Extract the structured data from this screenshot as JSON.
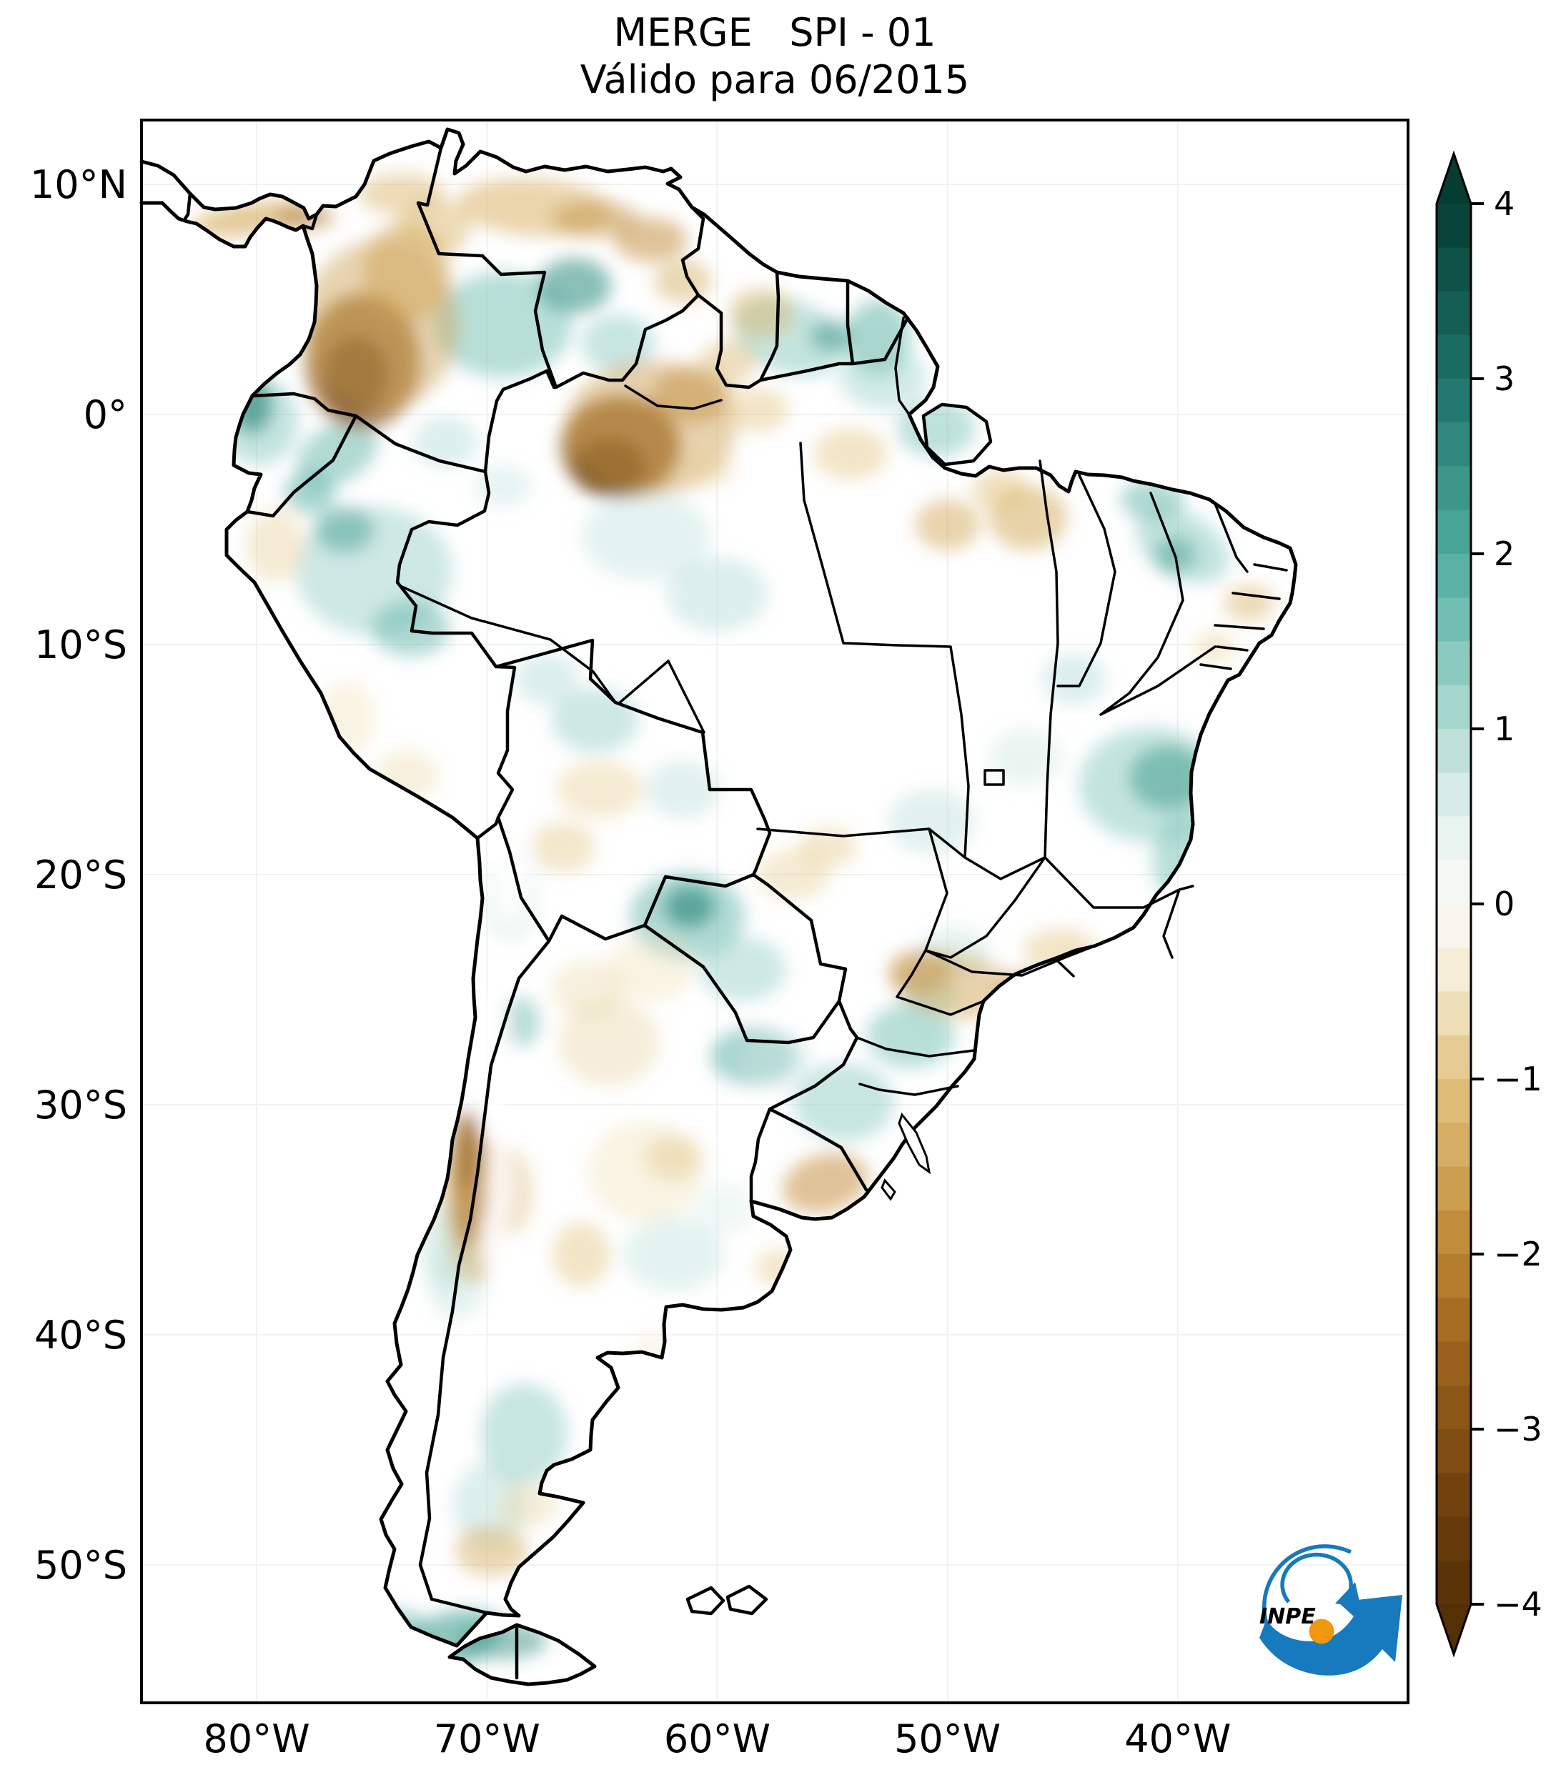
{
  "title": {
    "line1": "MERGE   SPI - 01",
    "line2": "Válido para 06/2015"
  },
  "axes": {
    "lat_ticks": [
      {
        "label": "10°N",
        "deg": 10
      },
      {
        "label": "0°",
        "deg": 0
      },
      {
        "label": "10°S",
        "deg": -10
      },
      {
        "label": "20°S",
        "deg": -20
      },
      {
        "label": "30°S",
        "deg": -30
      },
      {
        "label": "40°S",
        "deg": -40
      },
      {
        "label": "50°S",
        "deg": -50
      }
    ],
    "lon_ticks": [
      {
        "label": "80°W",
        "deg": -80
      },
      {
        "label": "70°W",
        "deg": -70
      },
      {
        "label": "60°W",
        "deg": -60
      },
      {
        "label": "50°W",
        "deg": -50
      },
      {
        "label": "40°W",
        "deg": -40
      }
    ]
  },
  "colorbar": {
    "tick_labels": [
      "4",
      "3",
      "2",
      "1",
      "0",
      "−1",
      "−2",
      "−3",
      "−4"
    ],
    "tick_values": [
      4,
      3,
      2,
      1,
      0,
      -1,
      -2,
      -3,
      -4
    ],
    "value_range": [
      -4,
      4
    ],
    "colormap_stops": [
      {
        "v": 4,
        "c": "#053d33"
      },
      {
        "v": 3,
        "c": "#1d7268"
      },
      {
        "v": 2,
        "c": "#4fab9f"
      },
      {
        "v": 1.5,
        "c": "#7cc4b8"
      },
      {
        "v": 1,
        "c": "#b3dcd4"
      },
      {
        "v": 0.5,
        "c": "#e3f1ed"
      },
      {
        "v": 0,
        "c": "#fafaf8"
      },
      {
        "v": -0.5,
        "c": "#f3e8c9"
      },
      {
        "v": -1,
        "c": "#e2c380"
      },
      {
        "v": -1.5,
        "c": "#d2a759"
      },
      {
        "v": -2,
        "c": "#bb8434"
      },
      {
        "v": -2.5,
        "c": "#a0661d"
      },
      {
        "v": -3,
        "c": "#855113"
      },
      {
        "v": -3.5,
        "c": "#6b3d0c"
      },
      {
        "v": -4,
        "c": "#543005"
      }
    ]
  },
  "logo": {
    "text": "INPE",
    "blue": "#1779be",
    "orange": "#f0960f",
    "black": "#111111"
  },
  "chart_data": {
    "type": "heatmap",
    "variable": "SPI (Standardized Precipitation Index), 1-month",
    "source": "MERGE",
    "valid_for": "06/2015",
    "region": "South America",
    "lon_range": [
      -85,
      -30
    ],
    "lat_range": [
      12.8,
      -56
    ],
    "value_range": [
      -4,
      4
    ],
    "colormap": "BrBG (brown = dry, teal = wet)",
    "grid": "faint 10-degree graticule",
    "legend_position": "right vertical colorbar with arrow ends",
    "anomalies": [
      {
        "lon": -69.3,
        "lat": 3.9,
        "rx": 3.0,
        "ry": 2.3,
        "rot": 0,
        "spi": 1.5,
        "op": 0.55
      },
      {
        "lon": -66.2,
        "lat": 5.6,
        "rx": 1.6,
        "ry": 1.2,
        "rot": 0,
        "spi": 2.4,
        "op": 0.6
      },
      {
        "lon": -64.3,
        "lat": 3.1,
        "rx": 1.6,
        "ry": 1.25,
        "rot": 0,
        "spi": 1.3,
        "op": 0.5
      },
      {
        "lon": -56.9,
        "lat": 3.4,
        "rx": 2.5,
        "ry": 1.6,
        "rot": 20,
        "spi": 1.4,
        "op": 0.5
      },
      {
        "lon": -55.0,
        "lat": 3.4,
        "rx": 0.95,
        "ry": 0.7,
        "rot": 0,
        "spi": 2.4,
        "op": 0.5
      },
      {
        "lon": -53.0,
        "lat": 3.3,
        "rx": 1.4,
        "ry": 1.7,
        "rot": 0,
        "spi": 1.9,
        "op": 0.5
      },
      {
        "lon": -52.8,
        "lat": 1.6,
        "rx": 1.9,
        "ry": 1.4,
        "rot": 0,
        "spi": 1.2,
        "op": 0.45
      },
      {
        "lon": -50.5,
        "lat": -0.6,
        "rx": 1.7,
        "ry": 1.25,
        "rot": 0,
        "spi": 1.5,
        "op": 0.5
      },
      {
        "lon": -80.2,
        "lat": 0.4,
        "rx": 0.85,
        "ry": 1.2,
        "rot": 0,
        "spi": 3.0,
        "op": 0.8
      },
      {
        "lon": -79.9,
        "lat": -0.3,
        "rx": 1.7,
        "ry": 1.9,
        "rot": 0,
        "spi": 1.5,
        "op": 0.45
      },
      {
        "lon": -76.5,
        "lat": -1.7,
        "rx": 1.9,
        "ry": 1.25,
        "rot": -30,
        "spi": 1.8,
        "op": 0.5
      },
      {
        "lon": -77.7,
        "lat": -3.4,
        "rx": 1.1,
        "ry": 0.9,
        "rot": 0,
        "spi": 2.0,
        "op": 0.5
      },
      {
        "lon": -74.9,
        "lat": -6.8,
        "rx": 3.4,
        "ry": 2.8,
        "rot": 0,
        "spi": 1.2,
        "op": 0.5
      },
      {
        "lon": -76.2,
        "lat": -5.0,
        "rx": 1.3,
        "ry": 1.0,
        "rot": 0,
        "spi": 2.2,
        "op": 0.5
      },
      {
        "lon": -73.3,
        "lat": -9.3,
        "rx": 1.7,
        "ry": 1.2,
        "rot": 0,
        "spi": 1.8,
        "op": 0.5
      },
      {
        "lon": -71.8,
        "lat": -1.2,
        "rx": 1.4,
        "ry": 1.1,
        "rot": 0,
        "spi": 1.0,
        "op": 0.45
      },
      {
        "lon": -69.3,
        "lat": -3.1,
        "rx": 1.25,
        "ry": 0.9,
        "rot": 0,
        "spi": 0.8,
        "op": 0.4
      },
      {
        "lon": -63.1,
        "lat": -5.3,
        "rx": 2.8,
        "ry": 1.9,
        "rot": 0,
        "spi": 0.8,
        "op": 0.45
      },
      {
        "lon": -60.0,
        "lat": -7.8,
        "rx": 2.2,
        "ry": 1.6,
        "rot": 0,
        "spi": 1.0,
        "op": 0.45
      },
      {
        "lon": -65.3,
        "lat": -13.3,
        "rx": 1.9,
        "ry": 1.4,
        "rot": 0,
        "spi": 1.2,
        "op": 0.5
      },
      {
        "lon": -67.4,
        "lat": -11.5,
        "rx": 1.4,
        "ry": 1.1,
        "rot": 0,
        "spi": 1.0,
        "op": 0.45
      },
      {
        "lon": -61.5,
        "lat": -16.3,
        "rx": 1.6,
        "ry": 1.25,
        "rot": 0,
        "spi": 1.0,
        "op": 0.4
      },
      {
        "lon": -61.2,
        "lat": -21.4,
        "rx": 1.1,
        "ry": 0.9,
        "rot": 0,
        "spi": 3.0,
        "op": 0.75
      },
      {
        "lon": -61.3,
        "lat": -21.8,
        "rx": 2.5,
        "ry": 1.9,
        "rot": 0,
        "spi": 1.8,
        "op": 0.5
      },
      {
        "lon": -58.9,
        "lat": -24.1,
        "rx": 1.9,
        "ry": 1.4,
        "rot": 0,
        "spi": 1.3,
        "op": 0.45
      },
      {
        "lon": -40.4,
        "lat": -15.8,
        "rx": 1.7,
        "ry": 1.4,
        "rot": 0,
        "spi": 2.5,
        "op": 0.7
      },
      {
        "lon": -41.2,
        "lat": -16.1,
        "rx": 3.1,
        "ry": 2.5,
        "rot": 0,
        "spi": 1.4,
        "op": 0.5
      },
      {
        "lon": -39.7,
        "lat": -19.4,
        "rx": 1.4,
        "ry": 1.9,
        "rot": 0,
        "spi": 1.6,
        "op": 0.5
      },
      {
        "lon": -39.8,
        "lat": -5.7,
        "rx": 2.2,
        "ry": 1.4,
        "rot": 30,
        "spi": 1.4,
        "op": 0.5
      },
      {
        "lon": -41.1,
        "lat": -3.7,
        "rx": 1.4,
        "ry": 0.9,
        "rot": 0,
        "spi": 1.8,
        "op": 0.5
      },
      {
        "lon": -40.1,
        "lat": -6.1,
        "rx": 0.9,
        "ry": 0.8,
        "rot": 0,
        "spi": 2.2,
        "op": 0.5
      },
      {
        "lon": -50.7,
        "lat": -17.7,
        "rx": 1.9,
        "ry": 1.4,
        "rot": 0,
        "spi": 0.8,
        "op": 0.5
      },
      {
        "lon": -46.6,
        "lat": -14.9,
        "rx": 1.6,
        "ry": 1.25,
        "rot": 0,
        "spi": 0.7,
        "op": 0.45
      },
      {
        "lon": -44.5,
        "lat": -11.5,
        "rx": 1.4,
        "ry": 1.1,
        "rot": 0,
        "spi": 1.0,
        "op": 0.45
      },
      {
        "lon": -49.7,
        "lat": -23.4,
        "rx": 1.6,
        "ry": 1.1,
        "rot": 0,
        "spi": 0.8,
        "op": 0.45
      },
      {
        "lon": -51.6,
        "lat": -27.0,
        "rx": 1.9,
        "ry": 1.4,
        "rot": 0,
        "spi": 1.5,
        "op": 0.55
      },
      {
        "lon": -58.4,
        "lat": -27.9,
        "rx": 1.9,
        "ry": 1.25,
        "rot": 0,
        "spi": 2.0,
        "op": 0.5
      },
      {
        "lon": -54.5,
        "lat": -29.9,
        "rx": 2.2,
        "ry": 1.7,
        "rot": 0,
        "spi": 1.3,
        "op": 0.5
      },
      {
        "lon": -50.8,
        "lat": -25.3,
        "rx": 1.25,
        "ry": 0.9,
        "rot": 0,
        "spi": 1.2,
        "op": 0.45
      },
      {
        "lon": -57.4,
        "lat": -28.1,
        "rx": 1.6,
        "ry": 1.25,
        "rot": 0,
        "spi": 0.7,
        "op": 0.4
      },
      {
        "lon": -61.9,
        "lat": -36.5,
        "rx": 2.2,
        "ry": 1.6,
        "rot": 0,
        "spi": 0.8,
        "op": 0.45
      },
      {
        "lon": -59.7,
        "lat": -34.5,
        "rx": 1.4,
        "ry": 1.1,
        "rot": 0,
        "spi": 0.6,
        "op": 0.4
      },
      {
        "lon": -69.0,
        "lat": -21.0,
        "rx": 1.25,
        "ry": 1.9,
        "rot": 0,
        "spi": 0.7,
        "op": 0.4
      },
      {
        "lon": -68.5,
        "lat": -26.4,
        "rx": 0.8,
        "ry": 1.1,
        "rot": 0,
        "spi": 1.8,
        "op": 0.45
      },
      {
        "lon": -71.7,
        "lat": -36.2,
        "rx": 1.1,
        "ry": 1.9,
        "rot": 0,
        "spi": 1.0,
        "op": 0.45
      },
      {
        "lon": -71.3,
        "lat": -37.6,
        "rx": 1.25,
        "ry": 1.7,
        "rot": 0,
        "spi": 0.8,
        "op": 0.45
      },
      {
        "lon": -68.4,
        "lat": -44.3,
        "rx": 1.9,
        "ry": 2.2,
        "rot": 0,
        "spi": 1.3,
        "op": 0.5
      },
      {
        "lon": -69.9,
        "lat": -47.4,
        "rx": 1.6,
        "ry": 1.9,
        "rot": 0,
        "spi": 1.0,
        "op": 0.45
      },
      {
        "lon": -71.8,
        "lat": -53.4,
        "rx": 2.5,
        "ry": 1.25,
        "rot": -20,
        "spi": 2.2,
        "op": 0.6
      },
      {
        "lon": -74.1,
        "lat": -52.8,
        "rx": 1.6,
        "ry": 0.9,
        "rot": 0,
        "spi": 1.8,
        "op": 0.5
      },
      {
        "lon": -69.3,
        "lat": -53.3,
        "rx": 1.9,
        "ry": 0.8,
        "rot": 0,
        "spi": 2.5,
        "op": 0.5
      },
      {
        "lon": -80.3,
        "lat": 8.5,
        "rx": 2.5,
        "ry": 0.7,
        "rot": -8,
        "spi": -1.5,
        "op": 0.6
      },
      {
        "lon": -77.9,
        "lat": 8.6,
        "rx": 1.25,
        "ry": 0.55,
        "rot": 0,
        "spi": -2.4,
        "op": 0.5
      },
      {
        "lon": -75.4,
        "lat": 2.3,
        "rx": 2.5,
        "ry": 2.95,
        "rot": 0,
        "spi": -2.8,
        "op": 0.7
      },
      {
        "lon": -75.7,
        "lat": 1.7,
        "rx": 1.4,
        "ry": 1.7,
        "rot": 0,
        "spi": -3.8,
        "op": 0.55
      },
      {
        "lon": -74.6,
        "lat": 3.9,
        "rx": 3.4,
        "ry": 3.7,
        "rot": 0,
        "spi": -1.6,
        "op": 0.45
      },
      {
        "lon": -73.5,
        "lat": 6.2,
        "rx": 1.9,
        "ry": 2.2,
        "rot": 0,
        "spi": -1.6,
        "op": 0.5
      },
      {
        "lon": -72.3,
        "lat": 8.1,
        "rx": 1.6,
        "ry": 1.25,
        "rot": 0,
        "spi": -1.2,
        "op": 0.5
      },
      {
        "lon": -73.7,
        "lat": 9.6,
        "rx": 1.9,
        "ry": 0.9,
        "rot": 0,
        "spi": -1.2,
        "op": 0.5
      },
      {
        "lon": -67.9,
        "lat": 9.0,
        "rx": 3.4,
        "ry": 1.25,
        "rot": 4,
        "spi": -1.3,
        "op": 0.55
      },
      {
        "lon": -65.3,
        "lat": 8.5,
        "rx": 1.9,
        "ry": 0.8,
        "rot": 0,
        "spi": -1.8,
        "op": 0.5
      },
      {
        "lon": -62.9,
        "lat": 7.6,
        "rx": 1.6,
        "ry": 0.95,
        "rot": 0,
        "spi": -1.8,
        "op": 0.55
      },
      {
        "lon": -61.5,
        "lat": 5.8,
        "rx": 1.25,
        "ry": 0.95,
        "rot": 0,
        "spi": -1.3,
        "op": 0.5
      },
      {
        "lon": -64.2,
        "lat": -1.4,
        "rx": 2.6,
        "ry": 2.2,
        "rot": 0,
        "spi": -3.0,
        "op": 0.75
      },
      {
        "lon": -64.7,
        "lat": -2.3,
        "rx": 1.6,
        "ry": 1.25,
        "rot": 0,
        "spi": -3.9,
        "op": 0.6
      },
      {
        "lon": -62.9,
        "lat": -0.6,
        "rx": 3.7,
        "ry": 2.95,
        "rot": 0,
        "spi": -1.7,
        "op": 0.45
      },
      {
        "lon": -61.1,
        "lat": 0.9,
        "rx": 1.7,
        "ry": 1.25,
        "rot": 0,
        "spi": -1.8,
        "op": 0.5
      },
      {
        "lon": -59.5,
        "lat": 2.3,
        "rx": 1.25,
        "ry": 0.95,
        "rot": 0,
        "spi": -1.2,
        "op": 0.45
      },
      {
        "lon": -58.1,
        "lat": 4.4,
        "rx": 1.4,
        "ry": 1.1,
        "rot": 0,
        "spi": -1.2,
        "op": 0.5
      },
      {
        "lon": -58.3,
        "lat": 0.2,
        "rx": 1.4,
        "ry": 0.95,
        "rot": 0,
        "spi": -1.0,
        "op": 0.45
      },
      {
        "lon": -60.5,
        "lat": -2.3,
        "rx": 1.25,
        "ry": 0.85,
        "rot": 0,
        "spi": -0.8,
        "op": 0.4
      },
      {
        "lon": -54.2,
        "lat": -1.7,
        "rx": 1.6,
        "ry": 1.1,
        "rot": 0,
        "spi": -1.0,
        "op": 0.45
      },
      {
        "lon": -50.0,
        "lat": -4.8,
        "rx": 1.4,
        "ry": 1.1,
        "rot": 0,
        "spi": -1.5,
        "op": 0.5
      },
      {
        "lon": -46.5,
        "lat": -4.5,
        "rx": 1.7,
        "ry": 1.4,
        "rot": 0,
        "spi": -1.4,
        "op": 0.55
      },
      {
        "lon": -47.7,
        "lat": -3.3,
        "rx": 1.25,
        "ry": 0.9,
        "rot": 0,
        "spi": -1.0,
        "op": 0.5
      },
      {
        "lon": -44.8,
        "lat": -2.1,
        "rx": 0.7,
        "ry": 0.5,
        "rot": 0,
        "spi": -1.4,
        "op": 0.5
      },
      {
        "lon": -36.9,
        "lat": -8.2,
        "rx": 1.1,
        "ry": 0.8,
        "rot": 0,
        "spi": -1.2,
        "op": 0.5
      },
      {
        "lon": -38.4,
        "lat": -10.1,
        "rx": 0.9,
        "ry": 0.7,
        "rot": 0,
        "spi": -0.8,
        "op": 0.45
      },
      {
        "lon": -49.7,
        "lat": -24.8,
        "rx": 2.8,
        "ry": 1.4,
        "rot": 10,
        "spi": -1.5,
        "op": 0.5
      },
      {
        "lon": -51.2,
        "lat": -24.2,
        "rx": 1.4,
        "ry": 0.95,
        "rot": 0,
        "spi": -2.0,
        "op": 0.4
      },
      {
        "lon": -46.6,
        "lat": -25.1,
        "rx": 1.25,
        "ry": 0.9,
        "rot": 0,
        "spi": -2.2,
        "op": 0.4
      },
      {
        "lon": -45.1,
        "lat": -23.3,
        "rx": 1.6,
        "ry": 0.95,
        "rot": 0,
        "spi": -1.0,
        "op": 0.45
      },
      {
        "lon": -56.7,
        "lat": -20.0,
        "rx": 1.6,
        "ry": 1.1,
        "rot": 0,
        "spi": -0.8,
        "op": 0.45
      },
      {
        "lon": -55.2,
        "lat": -18.8,
        "rx": 1.25,
        "ry": 0.85,
        "rot": 0,
        "spi": -1.0,
        "op": 0.4
      },
      {
        "lon": -65.1,
        "lat": -16.3,
        "rx": 1.9,
        "ry": 1.25,
        "rot": 0,
        "spi": -0.8,
        "op": 0.45
      },
      {
        "lon": -66.7,
        "lat": -18.8,
        "rx": 1.4,
        "ry": 1.1,
        "rot": 0,
        "spi": -1.0,
        "op": 0.4
      },
      {
        "lon": -62.9,
        "lat": -24.1,
        "rx": 1.9,
        "ry": 1.4,
        "rot": 0,
        "spi": -0.6,
        "op": 0.4
      },
      {
        "lon": -70.8,
        "lat": -33.2,
        "rx": 0.8,
        "ry": 3.0,
        "rot": 0,
        "spi": -2.6,
        "op": 0.7
      },
      {
        "lon": -70.9,
        "lat": -32.3,
        "rx": 0.5,
        "ry": 1.4,
        "rot": 0,
        "spi": -3.6,
        "op": 0.5
      },
      {
        "lon": -70.6,
        "lat": -34.4,
        "rx": 1.25,
        "ry": 3.4,
        "rot": 0,
        "spi": -1.5,
        "op": 0.45
      },
      {
        "lon": -69.1,
        "lat": -33.8,
        "rx": 1.1,
        "ry": 1.9,
        "rot": 0,
        "spi": -1.2,
        "op": 0.4
      },
      {
        "lon": -55.3,
        "lat": -33.4,
        "rx": 1.9,
        "ry": 1.25,
        "rot": -15,
        "spi": -1.8,
        "op": 0.55
      },
      {
        "lon": -57.4,
        "lat": -37.1,
        "rx": 0.95,
        "ry": 0.8,
        "rot": 0,
        "spi": -1.0,
        "op": 0.4
      },
      {
        "lon": -64.7,
        "lat": -27.3,
        "rx": 2.2,
        "ry": 1.9,
        "rot": 0,
        "spi": -0.7,
        "op": 0.45
      },
      {
        "lon": -63.1,
        "lat": -32.9,
        "rx": 2.5,
        "ry": 2.2,
        "rot": 0,
        "spi": -0.6,
        "op": 0.4
      },
      {
        "lon": -61.9,
        "lat": -32.3,
        "rx": 1.25,
        "ry": 0.95,
        "rot": 0,
        "spi": -1.0,
        "op": 0.4
      },
      {
        "lon": -65.9,
        "lat": -36.5,
        "rx": 1.25,
        "ry": 1.4,
        "rot": 0,
        "spi": -1.0,
        "op": 0.45
      },
      {
        "lon": -62.3,
        "lat": -41.1,
        "rx": 1.6,
        "ry": 1.25,
        "rot": 0,
        "spi": -0.5,
        "op": 0.35
      },
      {
        "lon": -69.8,
        "lat": -49.4,
        "rx": 1.6,
        "ry": 1.1,
        "rot": 0,
        "spi": -1.3,
        "op": 0.5
      },
      {
        "lon": -68.2,
        "lat": -47.4,
        "rx": 1.25,
        "ry": 0.95,
        "rot": 0,
        "spi": -0.8,
        "op": 0.4
      },
      {
        "lon": -79.2,
        "lat": -5.7,
        "rx": 1.25,
        "ry": 1.6,
        "rot": 0,
        "spi": -0.8,
        "op": 0.45
      },
      {
        "lon": -76.1,
        "lat": -13.2,
        "rx": 1.25,
        "ry": 1.6,
        "rot": 0,
        "spi": -0.6,
        "op": 0.4
      },
      {
        "lon": -73.5,
        "lat": -15.7,
        "rx": 1.4,
        "ry": 1.1,
        "rot": 0,
        "spi": -0.7,
        "op": 0.4
      },
      {
        "lon": -65.6,
        "lat": -25.0,
        "rx": 1.6,
        "ry": 1.25,
        "rot": 0,
        "spi": -0.7,
        "op": 0.4
      }
    ],
    "no_data_mask": [
      {
        "lon": -69.0,
        "lat": -19.9,
        "rx": 0.8,
        "ry": 2.2
      },
      {
        "lon": -69.7,
        "lat": -27.0,
        "rx": 0.6,
        "ry": 1.9
      },
      {
        "lon": -69.8,
        "lat": -30.0,
        "rx": 0.55,
        "ry": 1.7
      },
      {
        "lon": -69.5,
        "lat": -33.5,
        "rx": 0.5,
        "ry": 1.6
      },
      {
        "lon": -69.7,
        "lat": -35.8,
        "rx": 0.5,
        "ry": 1.6
      },
      {
        "lon": -70.8,
        "lat": -41.5,
        "rx": 0.55,
        "ry": 1.9
      },
      {
        "lon": -71.3,
        "lat": -44.5,
        "rx": 0.5,
        "ry": 1.9
      }
    ]
  }
}
